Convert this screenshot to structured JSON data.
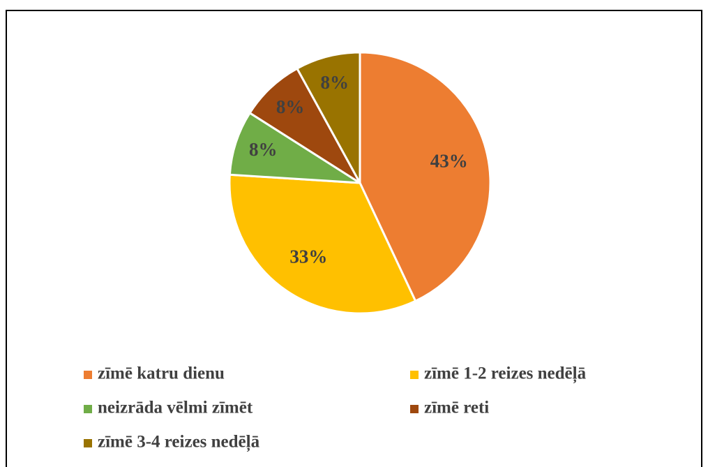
{
  "chart_data": {
    "type": "pie",
    "categories": [
      "zīmē katru dienu",
      "zīmē 1-2 reizes nedēļā",
      "neizrāda vēlmi zīmēt",
      "zīmē reti",
      "zīmē 3-4 reizes nedēļā"
    ],
    "values": [
      43,
      33,
      8,
      8,
      8
    ],
    "value_labels": [
      "43%",
      "33%",
      "8%",
      "8%",
      "8%"
    ],
    "colors": [
      "#ED7D31",
      "#FFC000",
      "#70AD47",
      "#9E480E",
      "#997300"
    ],
    "legend": "bottom"
  }
}
